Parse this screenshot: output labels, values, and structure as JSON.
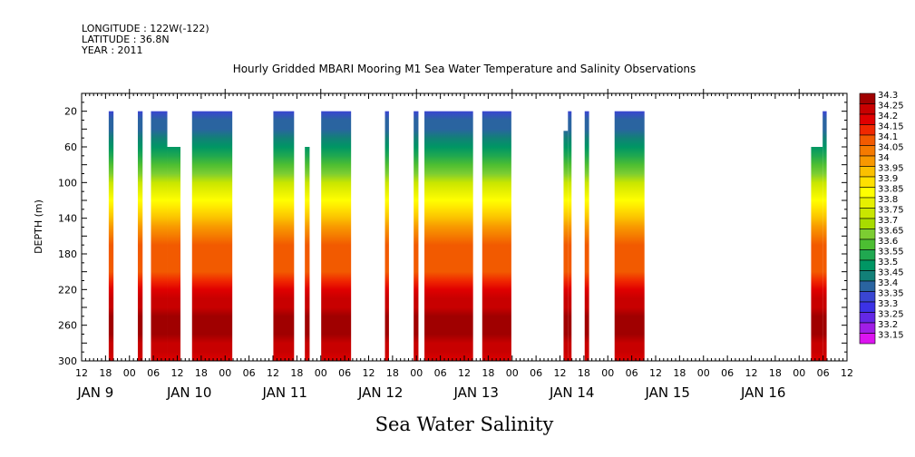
{
  "header": {
    "longitude": "LONGITUDE : 122W(-122)",
    "latitude": "LATITUDE : 36.8N",
    "year": "YEAR : 2011"
  },
  "chart_data": {
    "type": "heatmap",
    "title": "Hourly Gridded MBARI Mooring M1 Sea Water Temperature and Salinity Observations",
    "bottom_title": "Sea Water Salinity",
    "ylabel": "DEPTH (m)",
    "ylim": [
      300,
      0
    ],
    "y_ticks": [
      20,
      60,
      100,
      140,
      180,
      220,
      260,
      300
    ],
    "x_unit": "hours since 2011-01-08 12:00",
    "xlim": [
      0,
      192
    ],
    "x_tick_labels": [
      {
        "x": 0,
        "label": "12"
      },
      {
        "x": 6,
        "label": "18"
      },
      {
        "x": 12,
        "label": "00"
      },
      {
        "x": 18,
        "label": "06"
      },
      {
        "x": 24,
        "label": "12"
      },
      {
        "x": 30,
        "label": "18"
      },
      {
        "x": 36,
        "label": "00"
      },
      {
        "x": 42,
        "label": "06"
      },
      {
        "x": 48,
        "label": "12"
      },
      {
        "x": 54,
        "label": "18"
      },
      {
        "x": 60,
        "label": "00"
      },
      {
        "x": 66,
        "label": "06"
      },
      {
        "x": 72,
        "label": "12"
      },
      {
        "x": 78,
        "label": "18"
      },
      {
        "x": 84,
        "label": "00"
      },
      {
        "x": 90,
        "label": "06"
      },
      {
        "x": 96,
        "label": "12"
      },
      {
        "x": 102,
        "label": "18"
      },
      {
        "x": 108,
        "label": "00"
      },
      {
        "x": 114,
        "label": "06"
      },
      {
        "x": 120,
        "label": "12"
      },
      {
        "x": 126,
        "label": "18"
      },
      {
        "x": 132,
        "label": "00"
      },
      {
        "x": 138,
        "label": "06"
      },
      {
        "x": 144,
        "label": "12"
      },
      {
        "x": 150,
        "label": "18"
      },
      {
        "x": 156,
        "label": "00"
      },
      {
        "x": 162,
        "label": "06"
      },
      {
        "x": 168,
        "label": "12"
      },
      {
        "x": 174,
        "label": "18"
      },
      {
        "x": 180,
        "label": "00"
      },
      {
        "x": 186,
        "label": "06"
      },
      {
        "x": 192,
        "label": "12"
      }
    ],
    "date_labels": [
      {
        "x": 3.5,
        "label": "JAN  9"
      },
      {
        "x": 27,
        "label": "JAN 10"
      },
      {
        "x": 51,
        "label": "JAN 11"
      },
      {
        "x": 75,
        "label": "JAN 12"
      },
      {
        "x": 99,
        "label": "JAN 13"
      },
      {
        "x": 123,
        "label": "JAN 14"
      },
      {
        "x": 147,
        "label": "JAN 15"
      },
      {
        "x": 171,
        "label": "JAN 16"
      }
    ],
    "legend": {
      "levels": [
        "34.3",
        "34.25",
        "34.2",
        "34.15",
        "34.1",
        "34.05",
        "34",
        "33.95",
        "33.9",
        "33.85",
        "33.8",
        "33.75",
        "33.7",
        "33.65",
        "33.6",
        "33.55",
        "33.5",
        "33.45",
        "33.4",
        "33.35",
        "33.3",
        "33.25",
        "33.2",
        "33.15"
      ],
      "colors": [
        "#a00000",
        "#c80000",
        "#e00000",
        "#f02800",
        "#f25a00",
        "#f57a00",
        "#f89800",
        "#fbc000",
        "#ffe000",
        "#ffff00",
        "#e6f000",
        "#c8e600",
        "#a8dc00",
        "#7ccd32",
        "#4cbe32",
        "#20a850",
        "#009664",
        "#128078",
        "#2a64a0",
        "#3a46d2",
        "#3c32e6",
        "#6428e6",
        "#a01ee6",
        "#dc14f0"
      ]
    },
    "segments": [
      {
        "x0": 6.8,
        "x1": 8.0,
        "top": 20
      },
      {
        "x0": 14.1,
        "x1": 15.3,
        "top": 20
      },
      {
        "x0": 17.4,
        "x1": 21.5,
        "top": 20
      },
      {
        "x0": 21.5,
        "x1": 24.8,
        "top": 60
      },
      {
        "x0": 27.7,
        "x1": 37.8,
        "top": 20
      },
      {
        "x0": 48.1,
        "x1": 53.3,
        "top": 20
      },
      {
        "x0": 56.0,
        "x1": 57.2,
        "top": 60
      },
      {
        "x0": 60.1,
        "x1": 67.6,
        "top": 20
      },
      {
        "x0": 76.1,
        "x1": 77.1,
        "top": 20
      },
      {
        "x0": 83.3,
        "x1": 84.5,
        "top": 20
      },
      {
        "x0": 86.0,
        "x1": 98.2,
        "top": 20
      },
      {
        "x0": 100.5,
        "x1": 107.8,
        "top": 20
      },
      {
        "x0": 120.9,
        "x1": 122.0,
        "top": 42
      },
      {
        "x0": 122.0,
        "x1": 122.9,
        "top": 20
      },
      {
        "x0": 126.2,
        "x1": 127.3,
        "top": 20
      },
      {
        "x0": 133.7,
        "x1": 141.2,
        "top": 20
      },
      {
        "x0": 183.0,
        "x1": 185.9,
        "top": 60
      },
      {
        "x0": 185.9,
        "x1": 186.9,
        "top": 20
      }
    ],
    "salinity_profile": [
      {
        "depth": 20,
        "value": 33.35
      },
      {
        "depth": 40,
        "value": 33.4
      },
      {
        "depth": 60,
        "value": 33.5
      },
      {
        "depth": 80,
        "value": 33.6
      },
      {
        "depth": 100,
        "value": 33.75
      },
      {
        "depth": 120,
        "value": 33.85
      },
      {
        "depth": 140,
        "value": 33.95
      },
      {
        "depth": 160,
        "value": 34.05
      },
      {
        "depth": 180,
        "value": 34.1
      },
      {
        "depth": 200,
        "value": 34.1
      },
      {
        "depth": 220,
        "value": 34.2
      },
      {
        "depth": 240,
        "value": 34.25
      },
      {
        "depth": 260,
        "value": 34.3
      },
      {
        "depth": 280,
        "value": 34.25
      },
      {
        "depth": 300,
        "value": 34.2
      }
    ]
  }
}
